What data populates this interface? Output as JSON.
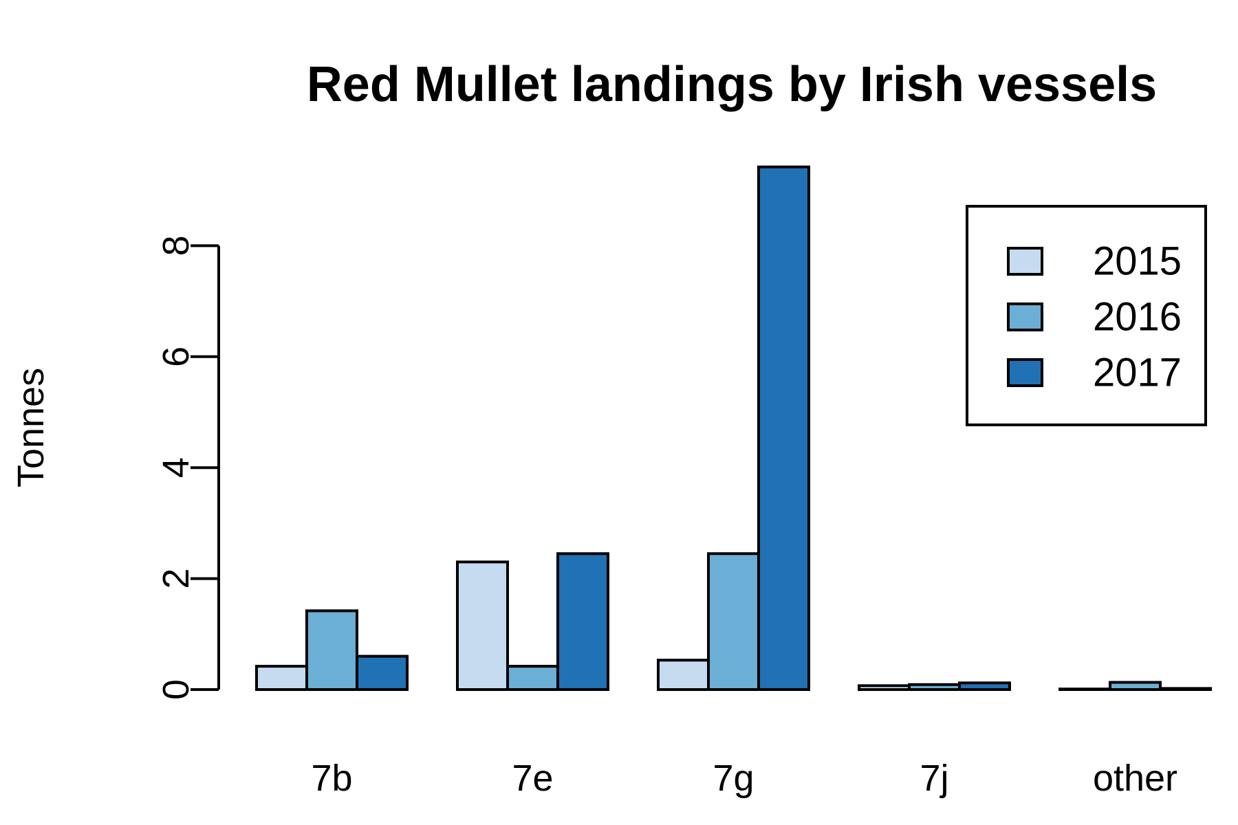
{
  "chart_data": {
    "type": "bar",
    "title": "Red Mullet landings by Irish vessels",
    "ylabel": "Tonnes",
    "xlabel": "",
    "categories": [
      "7b",
      "7e",
      "7g",
      "7j",
      "other"
    ],
    "series": [
      {
        "name": "2015",
        "color": "#c6dbef",
        "values": [
          0.42,
          2.3,
          0.53,
          0.07,
          0.01
        ]
      },
      {
        "name": "2016",
        "color": "#6baed6",
        "values": [
          1.42,
          0.42,
          2.45,
          0.09,
          0.13
        ]
      },
      {
        "name": "2017",
        "color": "#2171b5",
        "values": [
          0.6,
          2.45,
          9.42,
          0.12,
          0.02
        ]
      }
    ],
    "ylim": [
      0,
      9.42
    ],
    "yticks": [
      0,
      2,
      4,
      6,
      8
    ],
    "grid": false,
    "legend_position": "top-right"
  }
}
